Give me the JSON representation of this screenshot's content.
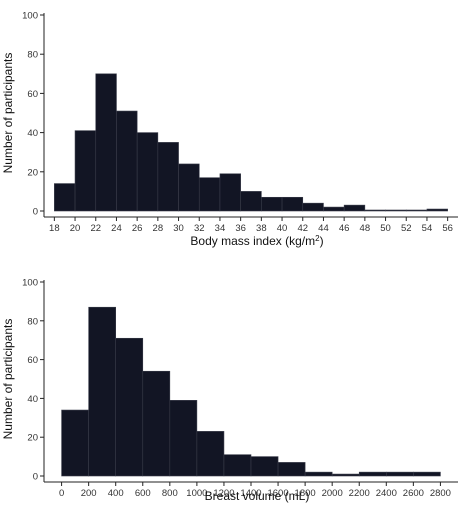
{
  "chart_data": [
    {
      "type": "bar",
      "xlabel": "Body mass index (kg/m",
      "xlabel_sup": "2",
      "xlabel_end": ")",
      "ylabel": "Number of participants",
      "bin_edges": [
        18,
        20,
        22,
        24,
        26,
        28,
        30,
        32,
        34,
        36,
        38,
        40,
        42,
        44,
        46,
        48,
        50,
        52,
        54,
        56
      ],
      "values": [
        14,
        41,
        70,
        51,
        40,
        35,
        24,
        17,
        19,
        10,
        7,
        7,
        4,
        2,
        3,
        0,
        0,
        0,
        1
      ],
      "xlim": [
        17,
        57
      ],
      "ylim": [
        0,
        100
      ],
      "x_ticks": [
        18,
        20,
        22,
        24,
        26,
        28,
        30,
        32,
        34,
        36,
        38,
        40,
        42,
        44,
        46,
        48,
        50,
        52,
        54,
        56
      ],
      "x_tick_labels": [
        "18",
        "20",
        "22",
        "24",
        "26",
        "28",
        "30",
        "32",
        "34",
        "36",
        "38",
        "40",
        "42",
        "44",
        "46",
        "48",
        "50",
        "52",
        "54",
        "56"
      ],
      "y_ticks": [
        0,
        20,
        40,
        60,
        80,
        100
      ],
      "y_tick_labels": [
        "0",
        "20",
        "40",
        "60",
        "80",
        "100"
      ],
      "bar_color": "#121524",
      "grid": false
    },
    {
      "type": "bar",
      "xlabel": "Breast volume (mL)",
      "ylabel": "Number of participants",
      "bin_edges": [
        0,
        200,
        400,
        600,
        800,
        1000,
        1200,
        1400,
        1600,
        1800,
        2000,
        2200,
        2400,
        2600,
        2800
      ],
      "values": [
        34,
        87,
        71,
        54,
        39,
        23,
        11,
        10,
        7,
        2,
        1,
        2,
        2,
        2
      ],
      "xlim": [
        -130,
        2930
      ],
      "ylim": [
        0,
        100
      ],
      "x_ticks": [
        0,
        200,
        400,
        600,
        800,
        1000,
        1200,
        1400,
        1600,
        1800,
        2000,
        2200,
        2400,
        2600,
        2800
      ],
      "x_tick_labels": [
        "0",
        "200",
        "400",
        "600",
        "800",
        "1000",
        "1200",
        "1400",
        "1600",
        "1800",
        "2000",
        "2200",
        "2400",
        "2600",
        "2800"
      ],
      "y_ticks": [
        0,
        20,
        40,
        60,
        80,
        100
      ],
      "y_tick_labels": [
        "0",
        "20",
        "40",
        "60",
        "80",
        "100"
      ],
      "bar_color": "#121524",
      "grid": false
    }
  ]
}
